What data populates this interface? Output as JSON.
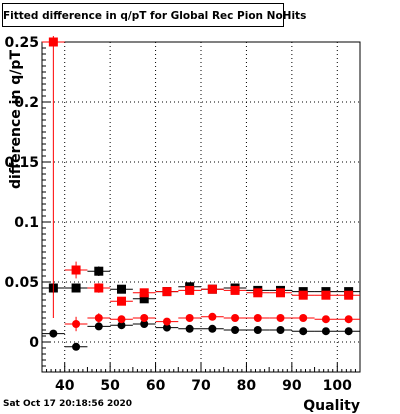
{
  "title": "Fitted difference in q/pT for Global Rec Pion NoHits",
  "timestamp": "Sat Oct 17 20:18:56 2020",
  "chart_data": {
    "type": "scatter",
    "title": "Fitted difference in q/pT for Global Rec Pion NoHits",
    "xlabel": "Quality",
    "ylabel": "difference in q/pT",
    "xlim": [
      35,
      105
    ],
    "ylim": [
      -0.025,
      0.25
    ],
    "x_ticks": [
      40,
      50,
      60,
      70,
      80,
      90,
      100
    ],
    "y_ticks": [
      0,
      0.05,
      0.1,
      0.15,
      0.2,
      0.25
    ],
    "y_tick_labels": [
      "0",
      "0.05",
      "0.1",
      "0.15",
      "0.2",
      "0.25"
    ],
    "x_tick_labels": [
      "40",
      "50",
      "60",
      "70",
      "80",
      "90",
      "100"
    ],
    "grid": true,
    "series": [
      {
        "marker": "square",
        "color": "#000000",
        "x": [
          37.5,
          42.5,
          47.5,
          52.5,
          57.5,
          62.5,
          67.5,
          72.5,
          77.5,
          82.5,
          87.5,
          92.5,
          97.5,
          102.5
        ],
        "y": [
          0.045,
          0.045,
          0.059,
          0.044,
          0.036,
          0.042,
          0.046,
          0.044,
          0.045,
          0.043,
          0.043,
          0.042,
          0.042,
          0.042
        ],
        "yerr": [
          0.004,
          0.003,
          0.004,
          0.002,
          0.002,
          0.002,
          0.002,
          0.001,
          0.001,
          0.001,
          0.001,
          0.001,
          0.001,
          0.001
        ]
      },
      {
        "marker": "square",
        "color": "#ff0000",
        "x": [
          37.5,
          42.5,
          47.5,
          52.5,
          57.5,
          62.5,
          67.5,
          72.5,
          77.5,
          82.5,
          87.5,
          92.5,
          97.5,
          102.5
        ],
        "y": [
          0.25,
          0.06,
          0.045,
          0.034,
          0.041,
          0.042,
          0.043,
          0.044,
          0.043,
          0.041,
          0.041,
          0.039,
          0.039,
          0.039
        ],
        "yerr": [
          0.23,
          0.007,
          0.004,
          0.003,
          0.002,
          0.002,
          0.002,
          0.001,
          0.001,
          0.001,
          0.001,
          0.001,
          0.001,
          0.001
        ]
      },
      {
        "marker": "circle",
        "color": "#000000",
        "x": [
          37.5,
          42.5,
          47.5,
          52.5,
          57.5,
          62.5,
          67.5,
          72.5,
          77.5,
          82.5,
          87.5,
          92.5,
          97.5,
          102.5
        ],
        "y": [
          0.007,
          -0.004,
          0.013,
          0.014,
          0.015,
          0.012,
          0.011,
          0.011,
          0.01,
          0.01,
          0.01,
          0.009,
          0.009,
          0.009
        ],
        "yerr": [
          0.002,
          0.002,
          0.002,
          0.001,
          0.001,
          0.001,
          0.001,
          0.001,
          0.001,
          0.001,
          0.001,
          0.001,
          0.001,
          0.001
        ]
      },
      {
        "marker": "circle",
        "color": "#ff0000",
        "x": [
          42.5,
          47.5,
          52.5,
          57.5,
          62.5,
          67.5,
          72.5,
          77.5,
          82.5,
          87.5,
          92.5,
          97.5,
          102.5
        ],
        "y": [
          0.015,
          0.02,
          0.019,
          0.02,
          0.017,
          0.02,
          0.021,
          0.02,
          0.02,
          0.02,
          0.02,
          0.019,
          0.019
        ],
        "yerr": [
          0.006,
          0.004,
          0.002,
          0.002,
          0.001,
          0.001,
          0.001,
          0.001,
          0.001,
          0.001,
          0.001,
          0.001,
          0.001
        ]
      }
    ]
  }
}
